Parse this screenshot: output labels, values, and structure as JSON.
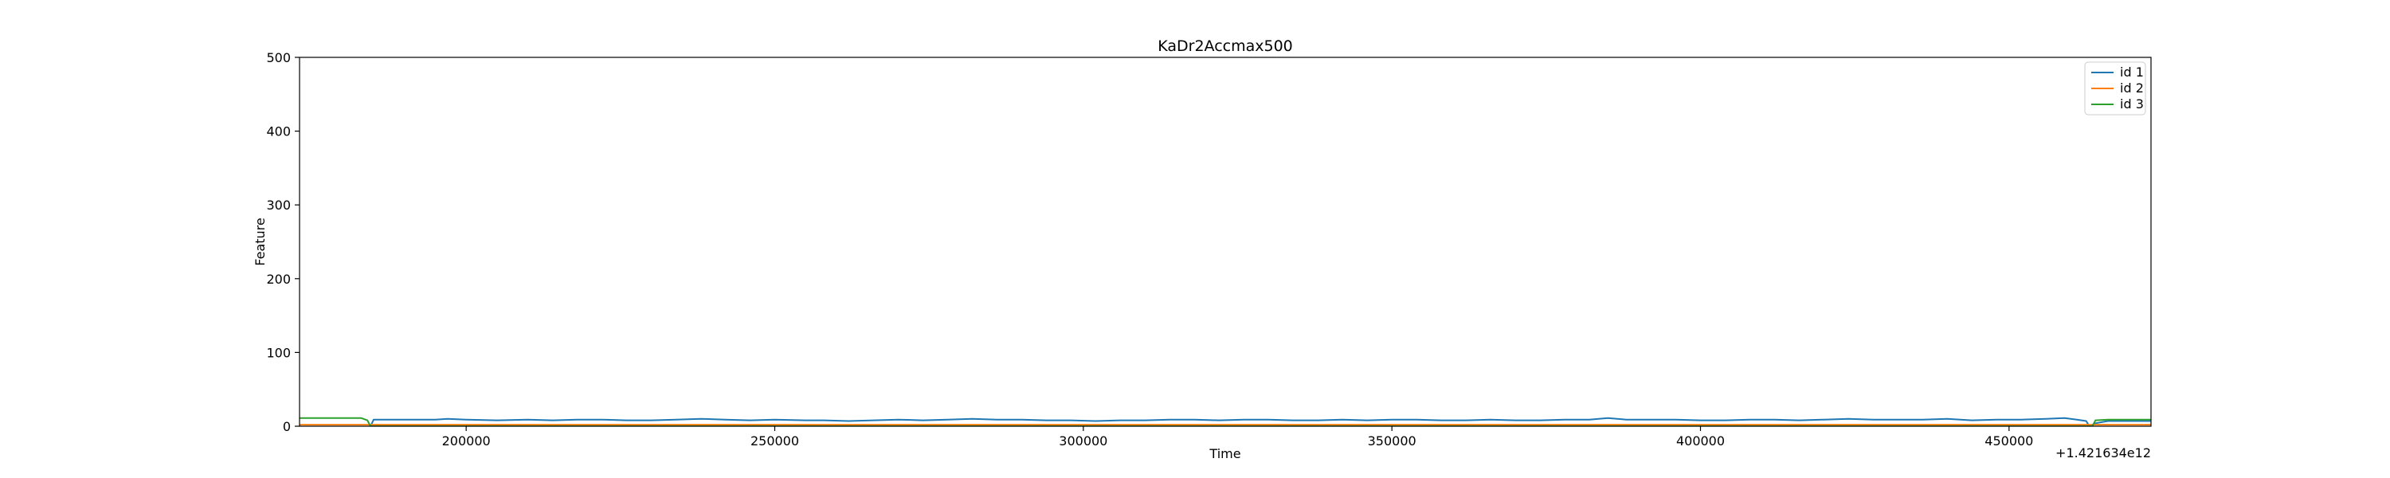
{
  "chart_data": {
    "type": "line",
    "title": "KaDr2Accmax500",
    "xlabel": "Time",
    "ylabel": "Feature",
    "x_offset_label": "+1.421634e12",
    "xlim": [
      173000,
      473000
    ],
    "ylim": [
      0,
      500
    ],
    "xticks": [
      200000,
      250000,
      300000,
      350000,
      400000,
      450000
    ],
    "xtick_labels": [
      "200000",
      "250000",
      "300000",
      "350000",
      "400000",
      "450000"
    ],
    "yticks": [
      0,
      100,
      200,
      300,
      400,
      500
    ],
    "ytick_labels": [
      "0",
      "100",
      "200",
      "300",
      "400",
      "500"
    ],
    "grid": false,
    "legend_position": "top-right",
    "series": [
      {
        "name": "id 1",
        "color": "#1f77b4",
        "x": [
          184500,
          185000,
          186000,
          190000,
          195000,
          197000,
          200000,
          205000,
          210000,
          214000,
          218000,
          222000,
          226000,
          230000,
          234000,
          238000,
          242000,
          246000,
          250000,
          255000,
          258000,
          262000,
          266000,
          270000,
          274000,
          278000,
          282000,
          286000,
          290000,
          294000,
          298000,
          302000,
          306000,
          310000,
          314000,
          318000,
          322000,
          326000,
          330000,
          334000,
          338000,
          342000,
          346000,
          350000,
          354000,
          358000,
          362000,
          366000,
          370000,
          374000,
          378000,
          382000,
          385000,
          388000,
          392000,
          396000,
          400000,
          404000,
          408000,
          412000,
          416000,
          420000,
          424000,
          428000,
          432000,
          436000,
          440000,
          444000,
          448000,
          452000,
          456000,
          459000,
          461000,
          462500,
          463000,
          464000,
          466000,
          470000,
          473000
        ],
        "y": [
          0,
          9,
          9,
          9,
          9,
          10,
          9,
          8,
          9,
          8,
          9,
          9,
          8,
          8,
          9,
          10,
          9,
          8,
          9,
          8,
          8,
          7,
          8,
          9,
          8,
          9,
          10,
          9,
          9,
          8,
          8,
          7,
          8,
          8,
          9,
          9,
          8,
          9,
          9,
          8,
          8,
          9,
          8,
          9,
          9,
          8,
          8,
          9,
          8,
          8,
          9,
          9,
          11,
          9,
          9,
          9,
          8,
          8,
          9,
          9,
          8,
          9,
          10,
          9,
          9,
          9,
          10,
          8,
          9,
          9,
          10,
          11,
          9,
          7,
          0,
          4,
          7,
          7,
          7
        ]
      },
      {
        "name": "id 2",
        "color": "#ff7f0e",
        "x": [
          173000,
          183000,
          190000,
          200000,
          220000,
          240000,
          260000,
          280000,
          300000,
          320000,
          340000,
          360000,
          380000,
          400000,
          420000,
          440000,
          460000,
          465000,
          473000
        ],
        "y": [
          2,
          2,
          2,
          2,
          2,
          2,
          2,
          2,
          2,
          2,
          2,
          2,
          2,
          2,
          2,
          2,
          2,
          2,
          2
        ]
      },
      {
        "name": "id 3",
        "color": "#2ca02c",
        "x": [
          173000,
          176000,
          180000,
          183000,
          184000,
          184500,
          463500,
          464000,
          466000,
          470000,
          473000
        ],
        "y": [
          11,
          11,
          11,
          11,
          8,
          0,
          0,
          8,
          9,
          9,
          9
        ]
      }
    ]
  }
}
